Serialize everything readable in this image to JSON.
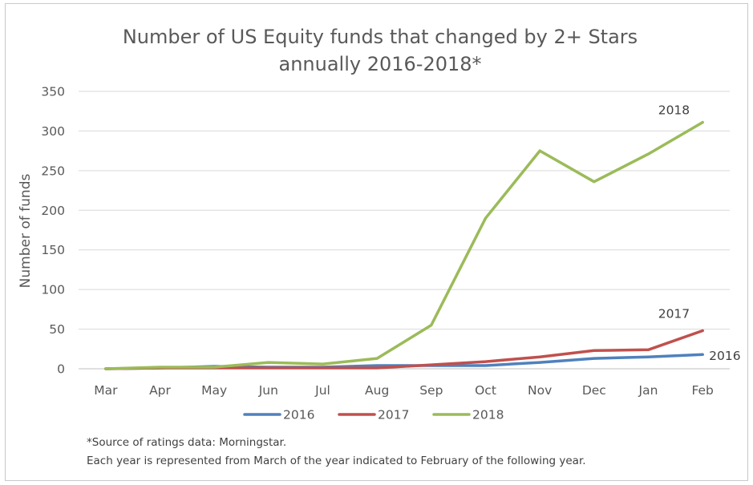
{
  "chart_data": {
    "type": "line",
    "title_lines": [
      "Number of US Equity funds that changed by 2+ Stars",
      "annually 2016-2018*"
    ],
    "ylabel": "Number of funds",
    "xlabel": "",
    "categories": [
      "Mar",
      "Apr",
      "May",
      "Jun",
      "Jul",
      "Aug",
      "Sep",
      "Oct",
      "Nov",
      "Dec",
      "Jan",
      "Feb"
    ],
    "ylim": [
      0,
      350
    ],
    "yticks": [
      0,
      50,
      100,
      150,
      200,
      250,
      300,
      350
    ],
    "grid": true,
    "legend_position": "bottom",
    "series": [
      {
        "name": "2016",
        "color": "#4f81bd",
        "end_label": "2016",
        "values": [
          0,
          1,
          3,
          2,
          2,
          4,
          4,
          4,
          8,
          13,
          15,
          18
        ]
      },
      {
        "name": "2017",
        "color": "#c0504d",
        "end_label": "2017",
        "values": [
          0,
          1,
          1,
          1,
          1,
          1,
          5,
          9,
          15,
          23,
          24,
          48
        ]
      },
      {
        "name": "2018",
        "color": "#9bbb59",
        "end_label": "2018",
        "values": [
          0,
          2,
          2,
          8,
          6,
          13,
          55,
          190,
          275,
          236,
          271,
          311
        ]
      }
    ]
  },
  "footnotes": [
    "*Source of ratings data: Morningstar.",
    "Each year is represented from March of the year indicated to February of the following year."
  ]
}
